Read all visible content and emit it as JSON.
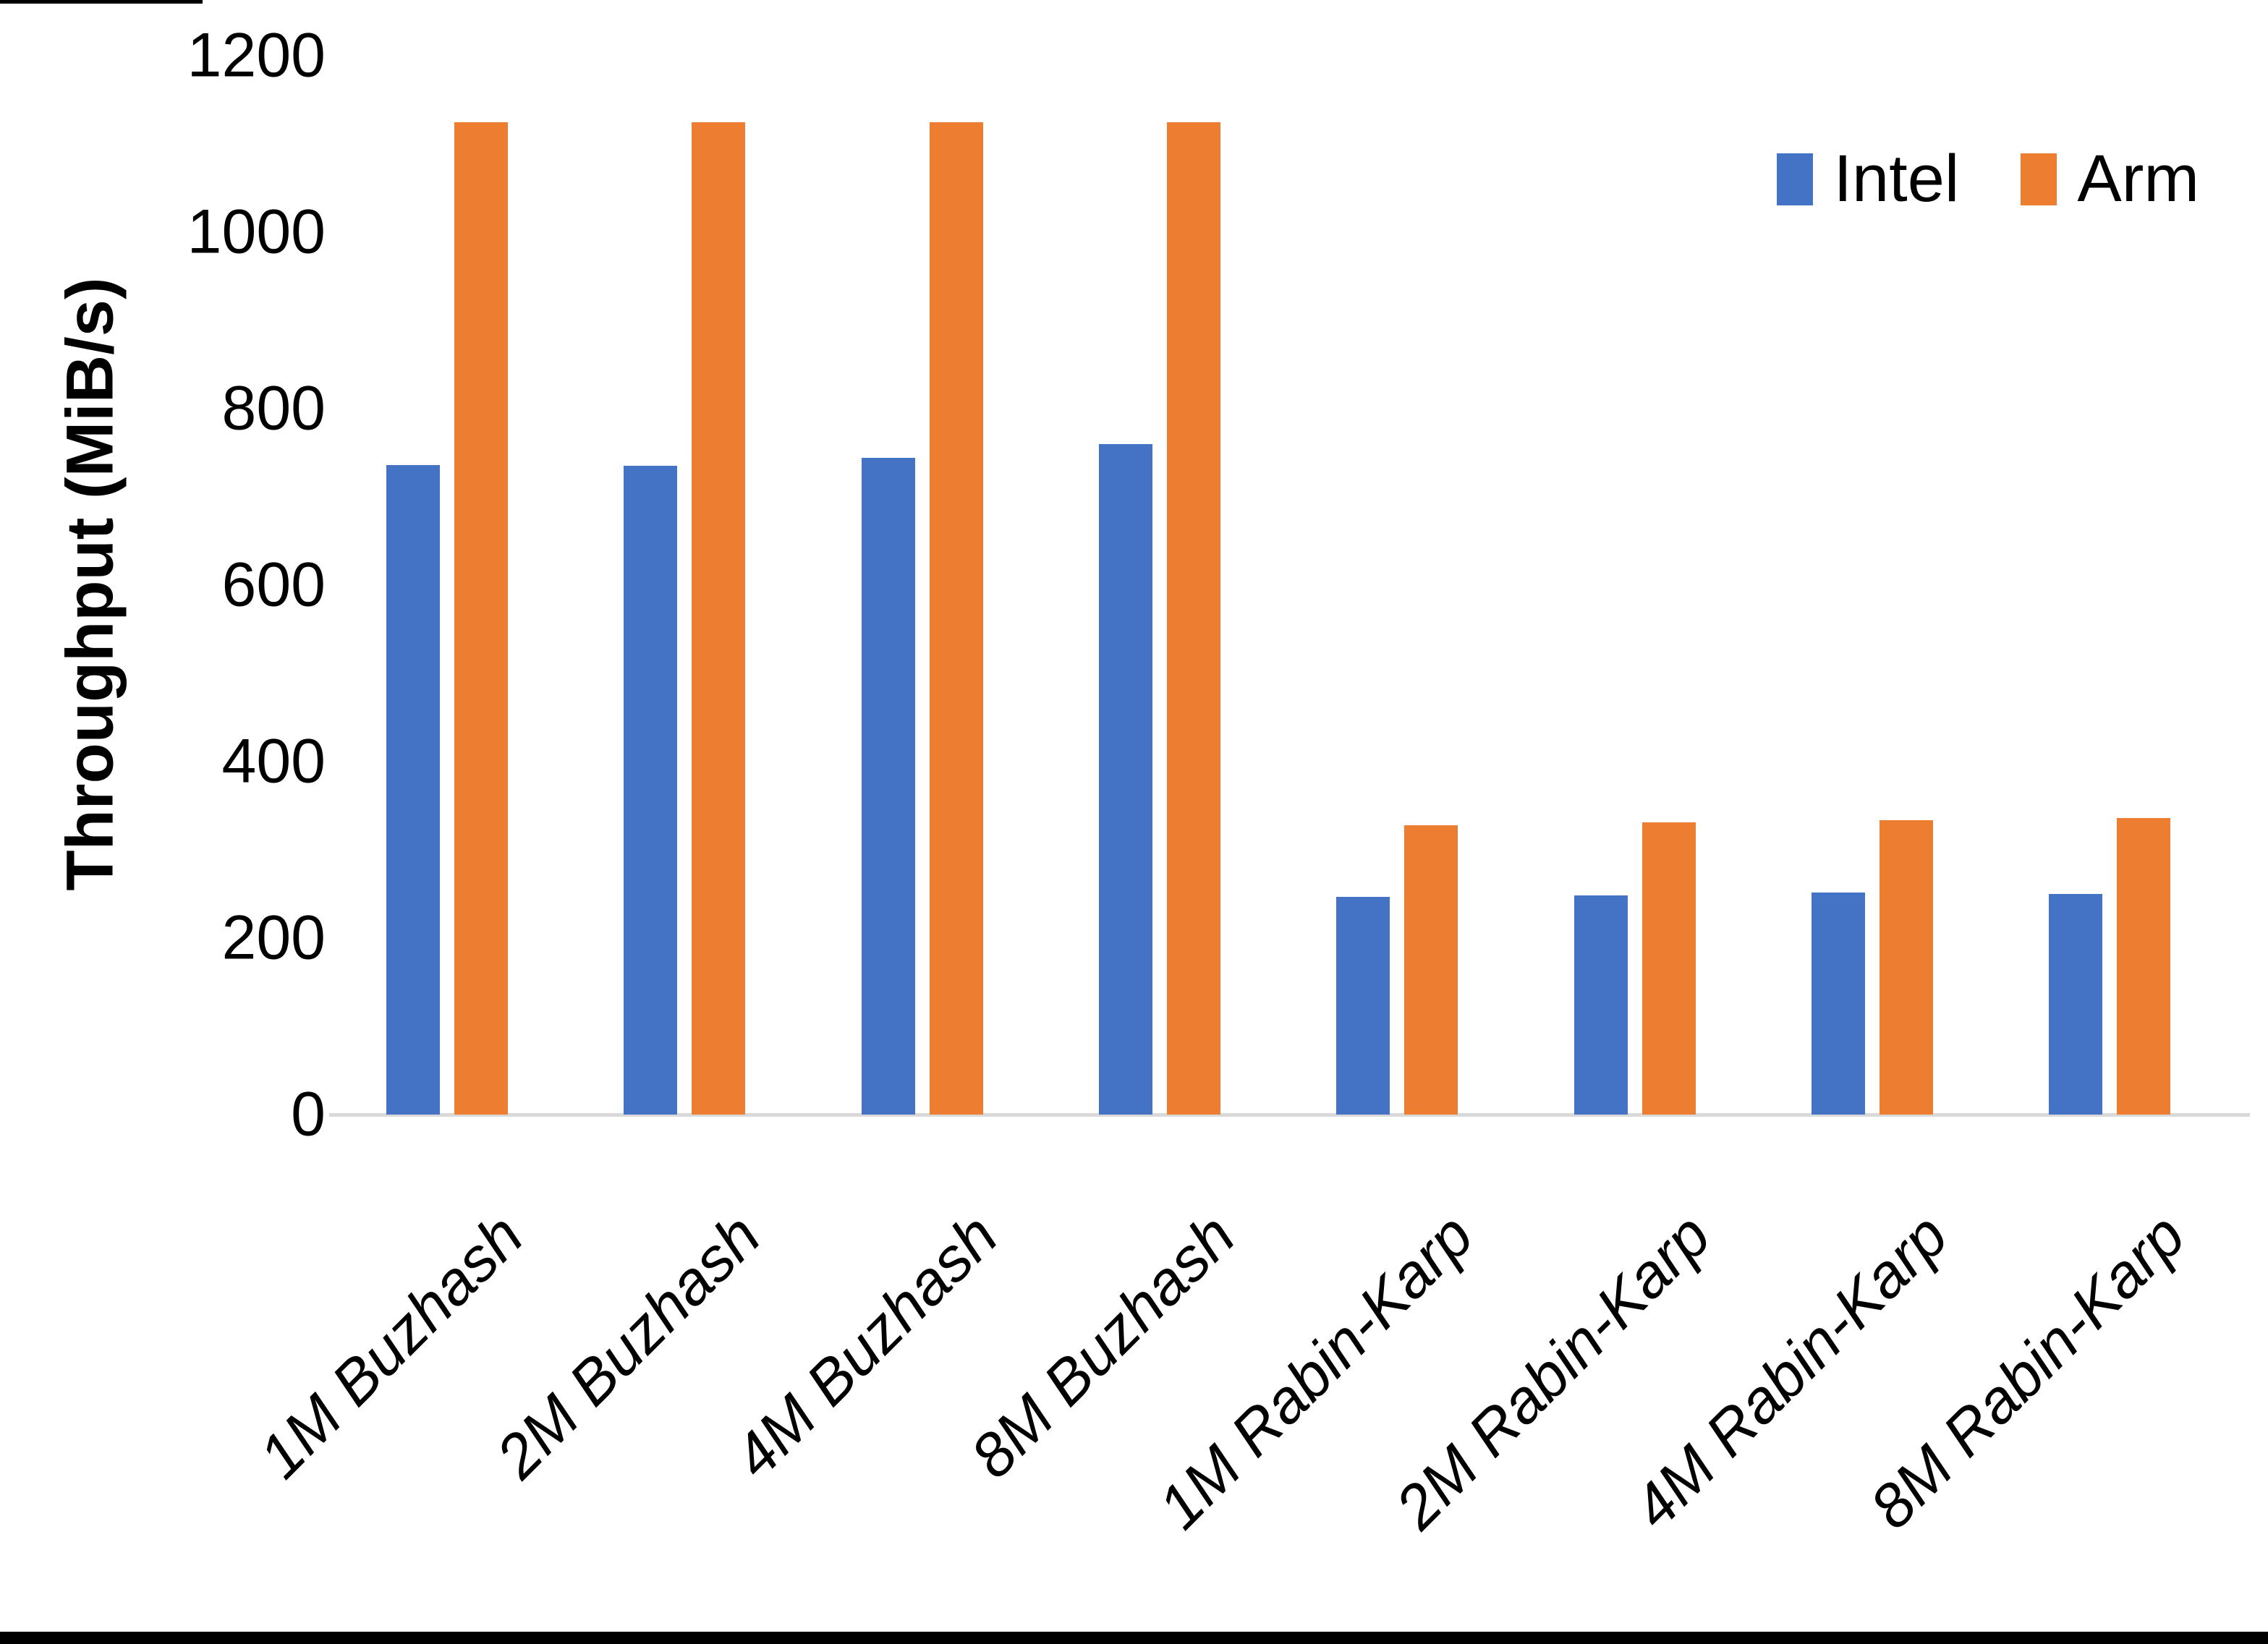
{
  "chart_data": {
    "type": "bar",
    "title": "",
    "xlabel": "",
    "ylabel": "Throughput (MiB/s)",
    "ylim": [
      0,
      1200
    ],
    "ytick_interval": 200,
    "ytick_labels": [
      "0",
      "200",
      "400",
      "600",
      "800",
      "1000",
      "1200"
    ],
    "grid": false,
    "legend_position": "top-right",
    "categories": [
      "1M Buzhash",
      "2M Buzhash",
      "4M Buzhash",
      "8M Buzhash",
      "1M Rabin-Karp",
      "2M Rabin-Karp",
      "4M Rabin-Karp",
      "8M Rabin-Karp"
    ],
    "series": [
      {
        "name": "Intel",
        "color": "#4472C4",
        "values": [
          736,
          735,
          744,
          760,
          247,
          248,
          252,
          250
        ]
      },
      {
        "name": "Arm",
        "color": "#ED7D31",
        "values": [
          1125,
          1125,
          1125,
          1125,
          328,
          331,
          334,
          336
        ]
      }
    ]
  },
  "colors": {
    "background": "#FFFFFF",
    "axis_line": "#D9D9D9",
    "text": "#000000",
    "screen_border": "#000000"
  }
}
